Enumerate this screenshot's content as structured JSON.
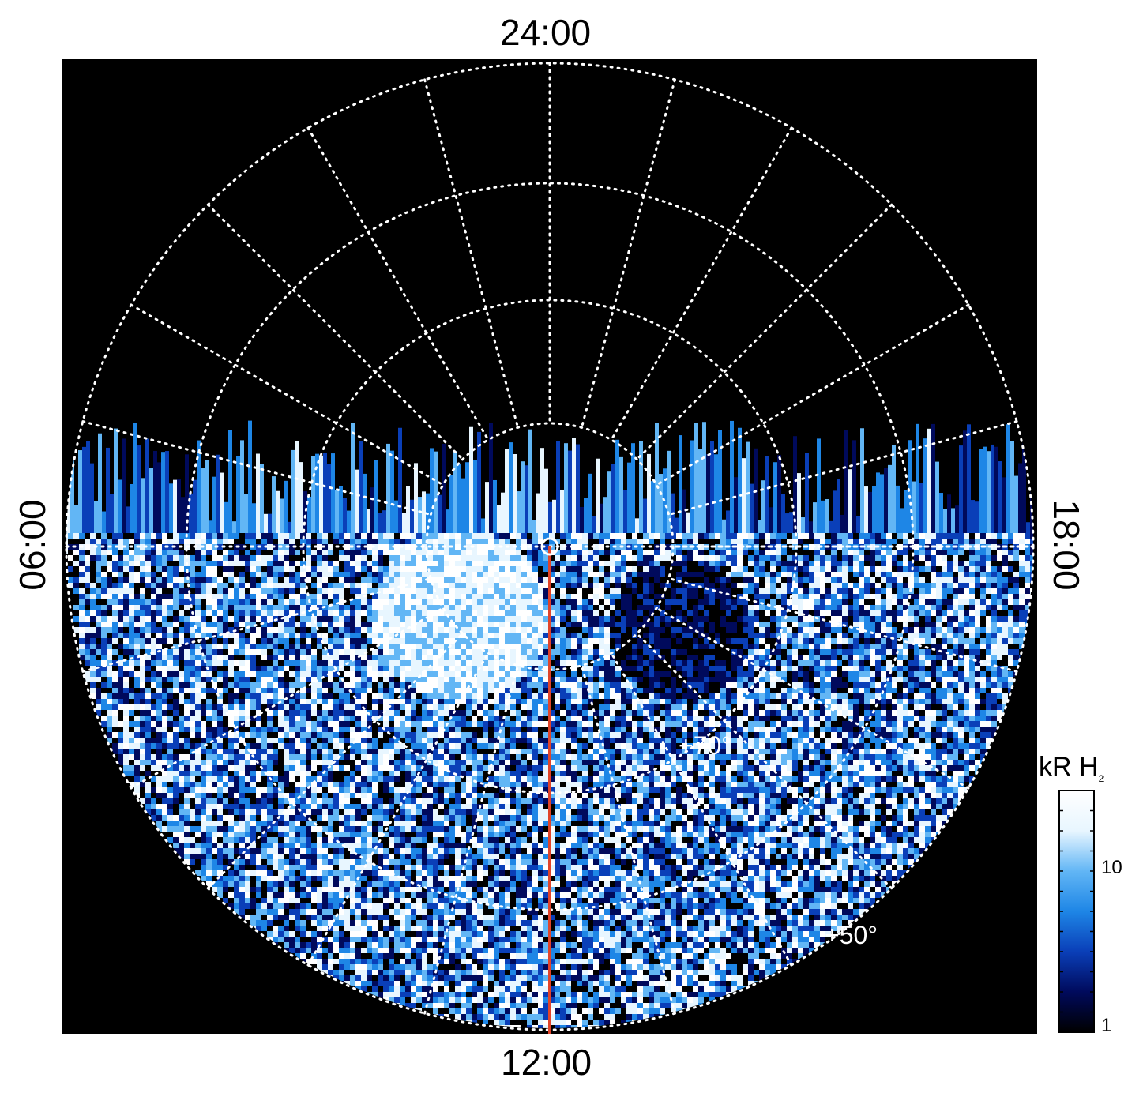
{
  "labels": {
    "top": "24:00",
    "bottom": "12:00",
    "left": "06:00",
    "right": "18:00"
  },
  "latitude_labels": [
    "+70°",
    "+50°"
  ],
  "colorbar": {
    "title": "kR H",
    "subscript": "2",
    "ticks": [
      "10",
      "1"
    ],
    "range_kR": [
      1,
      30
    ],
    "scale": "log",
    "colors": [
      "#000000",
      "#000a5c",
      "#0a3fb8",
      "#1e86e6",
      "#62b6f5",
      "#e8f6ff",
      "#ffffff"
    ]
  },
  "overlay": {
    "grid_color": "#ffffff",
    "meridian_line_color": "#e0442a",
    "pole_marker": "circle"
  }
}
